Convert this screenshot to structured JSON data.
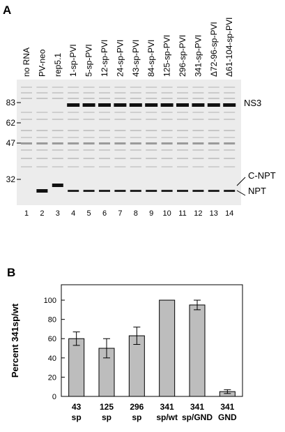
{
  "panel_a": {
    "label": "A",
    "lanes": [
      "no RNA",
      "PV-neo",
      "rep5.1",
      "1-sp-PVI",
      "5-sp-PVI",
      "12-sp-PVI",
      "24-sp-PVI",
      "43-sp-PVI",
      "84-sp-PVI",
      "125-sp-PVI",
      "296-sp-PVI",
      "341-sp-PVI",
      "Δ72-96-sp-PVI",
      "Δ61-104-sp-PVI"
    ],
    "lane_numbers": [
      "1",
      "2",
      "3",
      "4",
      "5",
      "6",
      "7",
      "8",
      "9",
      "10",
      "11",
      "12",
      "13",
      "14"
    ],
    "markers": [
      "83",
      "62",
      "47",
      "32"
    ],
    "bands": [
      "NS3",
      "C-NPT",
      "NPT"
    ]
  },
  "chart_data": {
    "type": "bar",
    "panel_label": "B",
    "y_label": "Percent 341sp/wt",
    "categories": [
      [
        "43",
        "sp"
      ],
      [
        "125",
        "sp"
      ],
      [
        "296",
        "sp"
      ],
      [
        "341",
        "sp/wt"
      ],
      [
        "341",
        "sp/GND"
      ],
      [
        "341",
        "GND"
      ]
    ],
    "values": [
      60,
      50,
      63,
      100,
      95,
      5
    ],
    "errors": [
      7,
      10,
      9,
      null,
      5,
      2
    ],
    "color": "#bdbdbd",
    "ylim": [
      0,
      116
    ],
    "yticks": [
      0,
      20,
      40,
      60,
      80,
      100
    ]
  }
}
